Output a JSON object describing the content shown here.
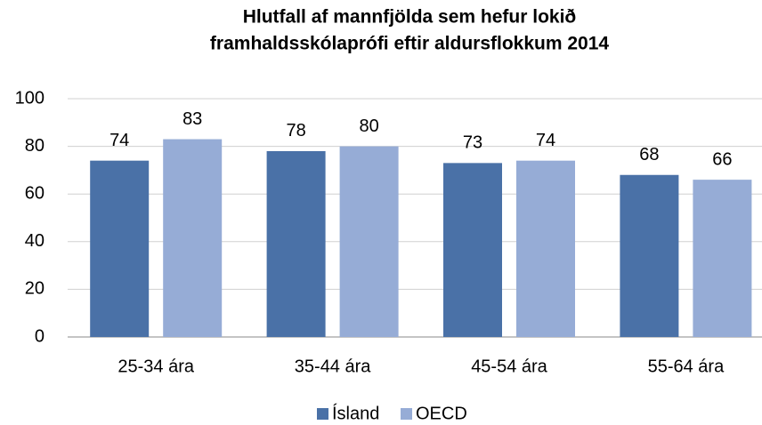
{
  "chart_data": {
    "type": "bar",
    "title": [
      "Hlutfall af mannfjölda sem hefur lokið",
      "framhaldsskólaprófi eftir aldursflokkum 2014"
    ],
    "categories": [
      "25-34 ára",
      "35-44 ára",
      "45-54 ára",
      "55-64 ára"
    ],
    "series": [
      {
        "name": "Ísland",
        "color": "#4a71a7",
        "values": [
          74,
          78,
          73,
          68
        ]
      },
      {
        "name": "OECD",
        "color": "#96acd6",
        "values": [
          83,
          80,
          74,
          66
        ]
      }
    ],
    "ylim": [
      0,
      100
    ],
    "yticks": [
      0,
      20,
      40,
      60,
      80,
      100
    ],
    "grid": true,
    "legend": "bottom"
  }
}
